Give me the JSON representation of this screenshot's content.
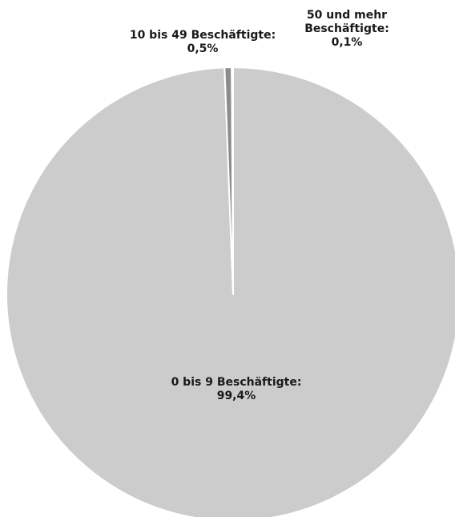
{
  "chart_data": {
    "type": "pie",
    "title": "",
    "start_angle_deg": 0,
    "direction": "clockwise",
    "slices": [
      {
        "label": "0 bis 9 Beschäftigte:",
        "value": 99.4,
        "value_label": "99,4%",
        "color": "#cccccc"
      },
      {
        "label": "10 bis 49 Beschäftigte:",
        "value": 0.5,
        "value_label": "0,5%",
        "color": "#8c8c8c"
      },
      {
        "label": "50 und mehr Beschäftigte:",
        "value": 0.1,
        "value_label": "0,1%",
        "color": "#595959"
      }
    ],
    "legend": "none",
    "data_labels": [
      "0 bis 9 Beschäftigte:",
      "99,4%",
      "10 bis 49 Beschäftigte:",
      "0,5%",
      "50 und mehr",
      "Beschäftigte:",
      "0,1%"
    ]
  }
}
